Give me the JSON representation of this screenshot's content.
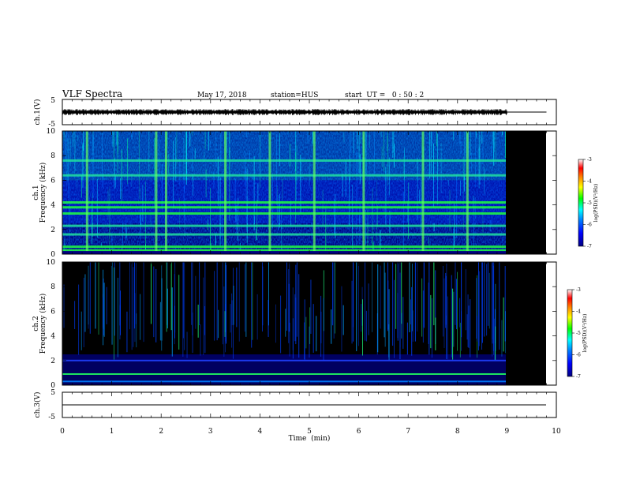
{
  "header": {
    "title": "VLF Spectra",
    "date": "May 17, 2018",
    "station": "station=HUS",
    "start": "start  UT =   0 : 50 : 2"
  },
  "chart_data": [
    {
      "type": "line",
      "panel": "ch1-waveform",
      "ylabel": "ch.1(V)",
      "yticks": [
        "5",
        "-5"
      ],
      "ylim": [
        -5,
        5
      ],
      "xlim": [
        0,
        10
      ],
      "data_end_min": 9.0,
      "series": [
        {
          "x": [
            0,
            9,
            9.8
          ],
          "y": [
            0,
            0,
            0
          ]
        }
      ]
    },
    {
      "type": "heatmap",
      "panel": "ch1-spectrogram",
      "ylabel": "ch.1\nFrequency (kHz)",
      "yticks": [
        "0",
        "2",
        "4",
        "6",
        "8",
        "10"
      ],
      "ylim": [
        0,
        10
      ],
      "xlim": [
        0,
        10
      ],
      "data_end_min": 9.0,
      "bands_khz": [
        0.3,
        0.6,
        1.6,
        2.3,
        3.3,
        3.8,
        4.2,
        6.4,
        7.6
      ],
      "bursts_min": [
        0.5,
        1.9,
        2.1,
        3.3,
        4.2,
        5.1,
        6.1,
        7.3,
        8.2
      ],
      "colorbar": {
        "label": "log(PSD)(V²/Hz)",
        "ticks": [
          "-3",
          "-4",
          "-5",
          "-6",
          "-7"
        ],
        "range": [
          -7,
          -3
        ]
      }
    },
    {
      "type": "heatmap",
      "panel": "ch2-spectrogram",
      "ylabel": "ch.2\nFrequency (kHz)",
      "yticks": [
        "0",
        "2",
        "4",
        "6",
        "8",
        "10"
      ],
      "ylim": [
        0,
        10
      ],
      "xlim": [
        0,
        10
      ],
      "data_end_min": 9.0,
      "bands_khz": [
        0.3,
        0.9,
        2.0
      ],
      "colorbar": {
        "label": "log(PSD)(V²/Hz)",
        "ticks": [
          "-3",
          "-4",
          "-5",
          "-6",
          "-7"
        ],
        "range": [
          -7,
          -3
        ]
      }
    },
    {
      "type": "line",
      "panel": "ch3-waveform",
      "ylabel": "ch.3(V)",
      "yticks": [
        "5",
        "-5"
      ],
      "ylim": [
        -5,
        5
      ],
      "xlim": [
        0,
        10
      ],
      "series": [
        {
          "x": [
            0,
            9.8
          ],
          "y": [
            0,
            0
          ]
        }
      ],
      "xlabel": "Time  (min)",
      "xticks": [
        "0",
        "1",
        "2",
        "3",
        "4",
        "5",
        "6",
        "7",
        "8",
        "9",
        "10"
      ]
    }
  ],
  "colors": {
    "scale": [
      "#000080",
      "#0000ff",
      "#0080ff",
      "#00ffff",
      "#00ff00",
      "#ffff00",
      "#ff8000",
      "#ff0000",
      "#ffffff"
    ],
    "background": "#000000"
  }
}
